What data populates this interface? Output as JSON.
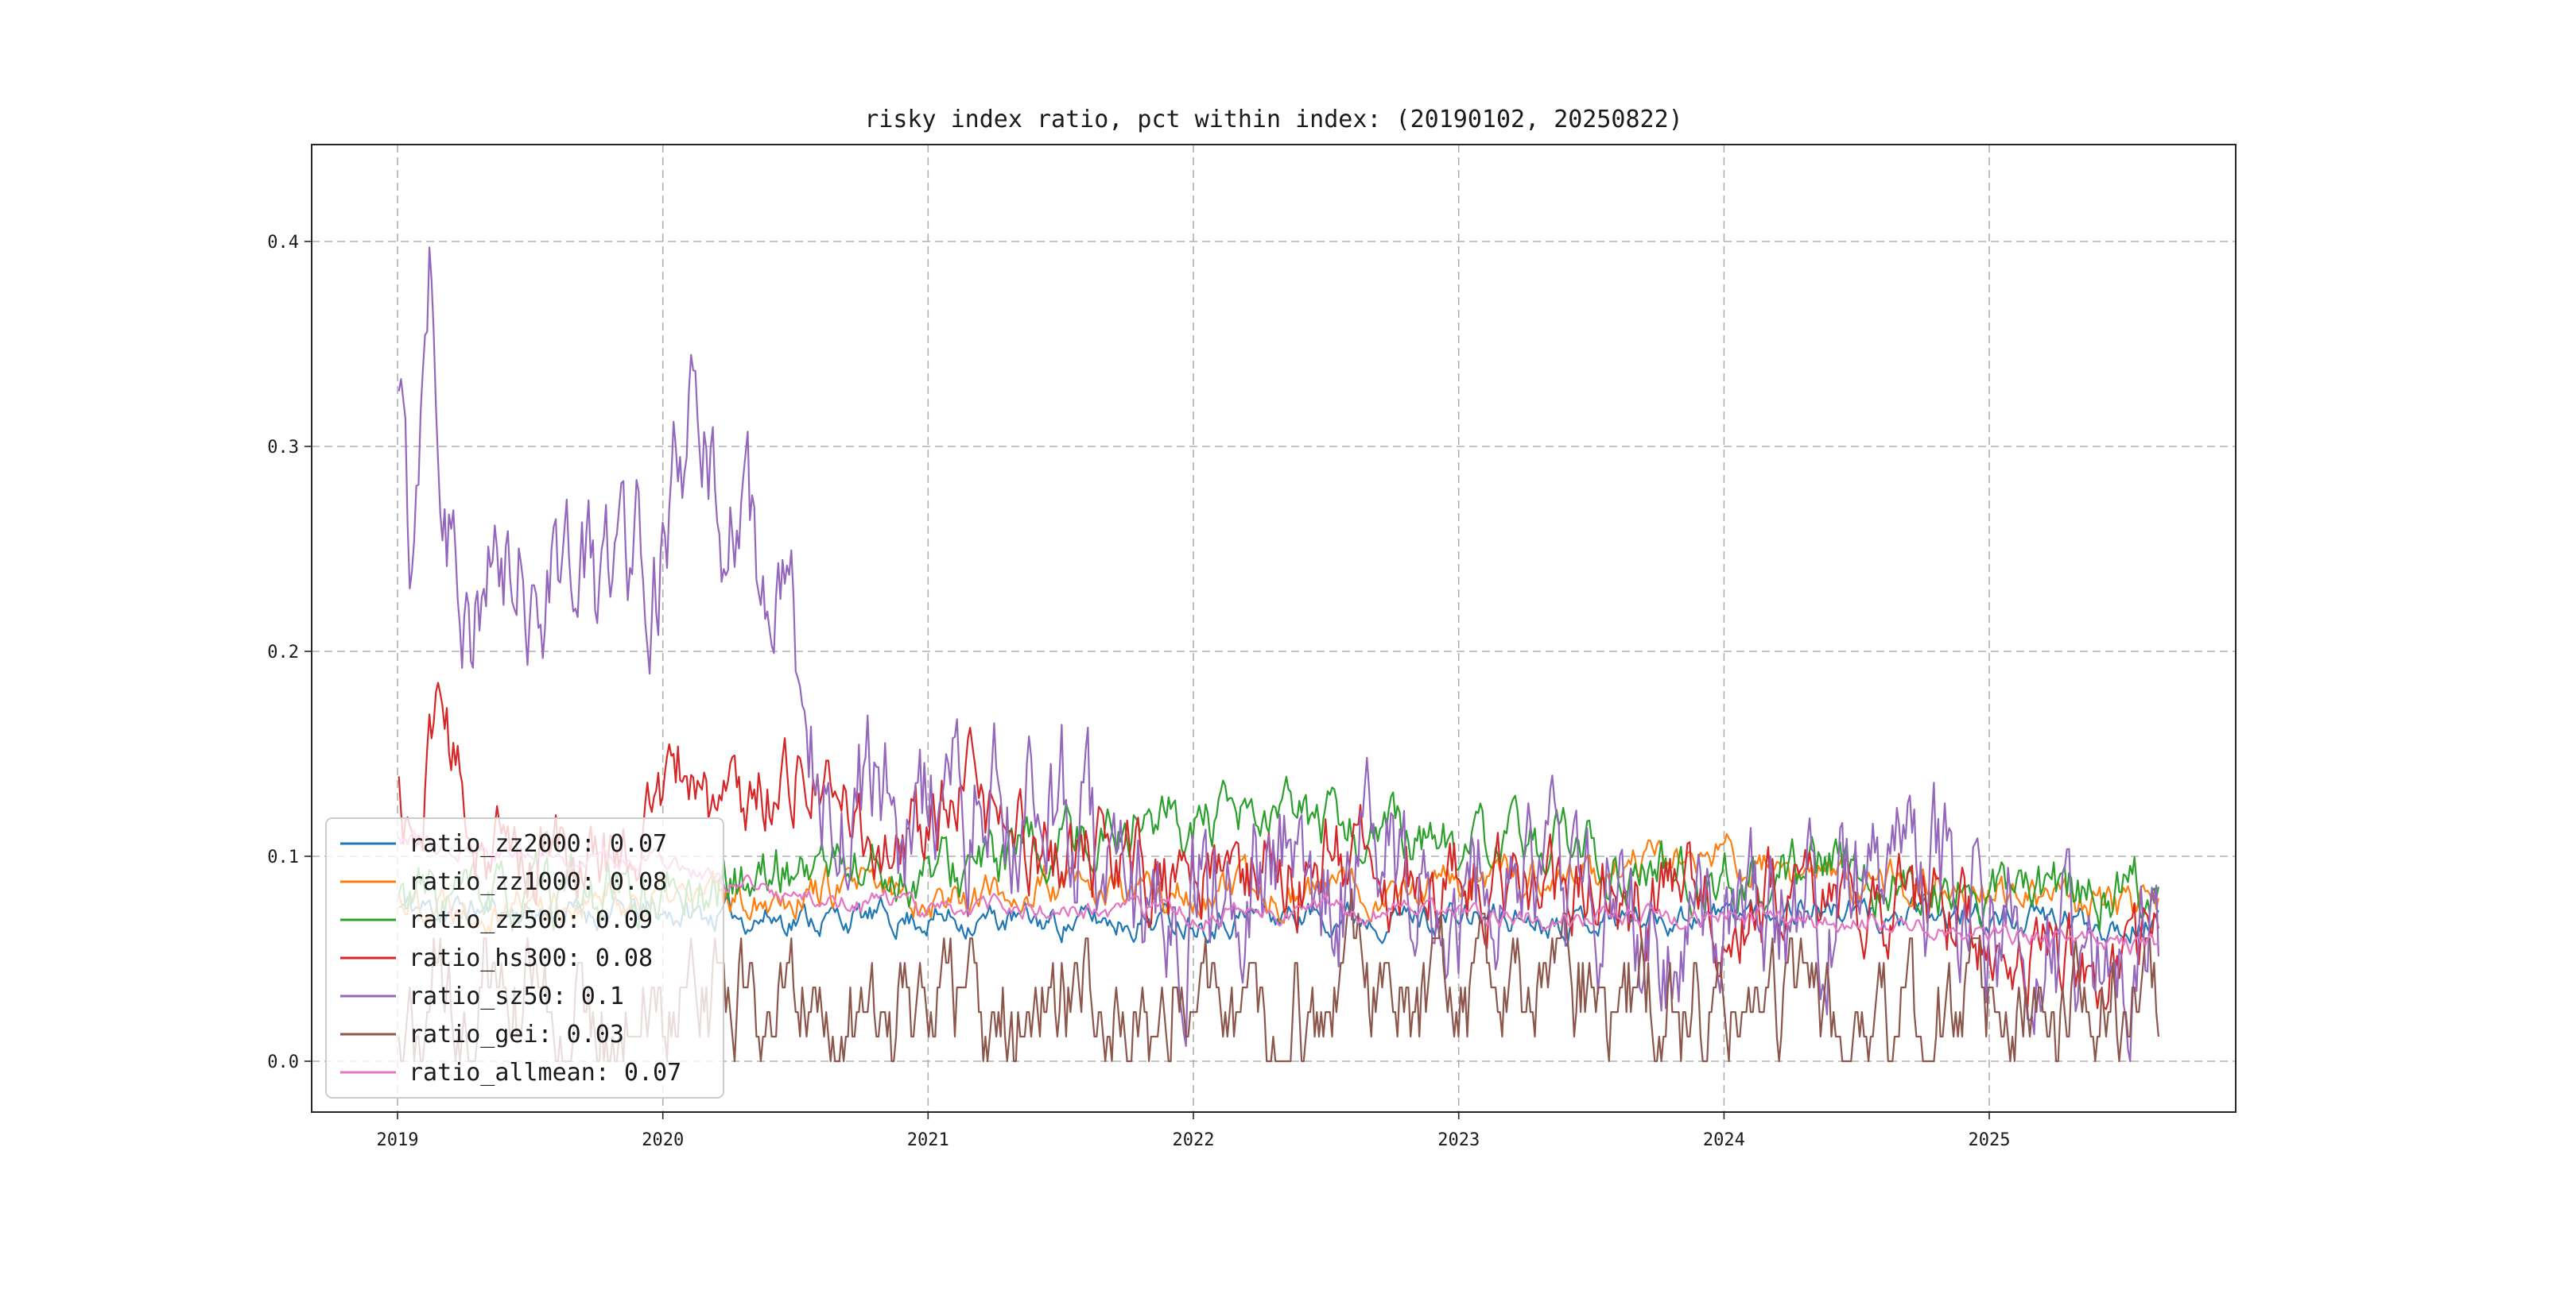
{
  "figure": {
    "background": "#ffffff"
  },
  "chart_data": {
    "type": "line",
    "title": "risky index ratio, pct within index: (20190102, 20250822)",
    "date_range": [
      "20190102",
      "20250822"
    ],
    "grid": true,
    "grid_style": "dashed",
    "grid_color": "#b0b0b0",
    "legend_position": "lower-left",
    "x_axis": {
      "ticks": [
        2019,
        2020,
        2021,
        2022,
        2023,
        2024,
        2025
      ],
      "range_decimal_years": [
        2018.68,
        2025.93
      ]
    },
    "y_axis": {
      "tick_labels": [
        "0.0",
        "0.1",
        "0.2",
        "0.3",
        "0.4"
      ],
      "tick_values": [
        0.0,
        0.1,
        0.2,
        0.3,
        0.4
      ],
      "range": [
        -0.025,
        0.447
      ]
    },
    "series": [
      {
        "name": "ratio_zz2000",
        "legend_label": "ratio_zz2000: 0.07",
        "mean": 0.07,
        "color": "#1f77b4",
        "noise_amp": 0.006,
        "seed": 11,
        "anchors": [
          [
            2019.0,
            0.075
          ],
          [
            2019.5,
            0.073
          ],
          [
            2020.0,
            0.072
          ],
          [
            2020.5,
            0.07
          ],
          [
            2021.0,
            0.07
          ],
          [
            2021.5,
            0.068
          ],
          [
            2022.0,
            0.07
          ],
          [
            2022.5,
            0.072
          ],
          [
            2023.0,
            0.07
          ],
          [
            2023.5,
            0.07
          ],
          [
            2024.0,
            0.072
          ],
          [
            2024.3,
            0.076
          ],
          [
            2024.6,
            0.07
          ],
          [
            2025.0,
            0.07
          ],
          [
            2025.3,
            0.068
          ],
          [
            2025.64,
            0.068
          ]
        ]
      },
      {
        "name": "ratio_zz1000",
        "legend_label": "ratio_zz1000: 0.08",
        "mean": 0.08,
        "color": "#ff7f0e",
        "noise_amp": 0.008,
        "seed": 22,
        "anchors": [
          [
            2019.0,
            0.08
          ],
          [
            2019.6,
            0.078
          ],
          [
            2020.2,
            0.08
          ],
          [
            2020.6,
            0.085
          ],
          [
            2021.0,
            0.08
          ],
          [
            2021.5,
            0.084
          ],
          [
            2022.0,
            0.08
          ],
          [
            2022.5,
            0.084
          ],
          [
            2023.0,
            0.086
          ],
          [
            2023.5,
            0.09
          ],
          [
            2023.8,
            0.1
          ],
          [
            2024.05,
            0.098
          ],
          [
            2024.3,
            0.088
          ],
          [
            2024.6,
            0.086
          ],
          [
            2024.9,
            0.09
          ],
          [
            2025.1,
            0.08
          ],
          [
            2025.35,
            0.074
          ],
          [
            2025.64,
            0.075
          ]
        ]
      },
      {
        "name": "ratio_zz500",
        "legend_label": "ratio_zz500: 0.09",
        "mean": 0.09,
        "color": "#2ca02c",
        "noise_amp": 0.012,
        "seed": 33,
        "anchors": [
          [
            2019.0,
            0.08
          ],
          [
            2019.5,
            0.078
          ],
          [
            2020.0,
            0.08
          ],
          [
            2020.3,
            0.088
          ],
          [
            2020.6,
            0.098
          ],
          [
            2020.9,
            0.09
          ],
          [
            2021.1,
            0.092
          ],
          [
            2021.4,
            0.1
          ],
          [
            2021.6,
            0.11
          ],
          [
            2021.85,
            0.12
          ],
          [
            2022.1,
            0.112
          ],
          [
            2022.35,
            0.118
          ],
          [
            2022.6,
            0.112
          ],
          [
            2022.9,
            0.108
          ],
          [
            2023.1,
            0.102
          ],
          [
            2023.35,
            0.108
          ],
          [
            2023.6,
            0.095
          ],
          [
            2023.9,
            0.09
          ],
          [
            2024.2,
            0.09
          ],
          [
            2024.5,
            0.092
          ],
          [
            2024.8,
            0.082
          ],
          [
            2025.1,
            0.08
          ],
          [
            2025.4,
            0.082
          ],
          [
            2025.64,
            0.086
          ]
        ]
      },
      {
        "name": "ratio_hs300",
        "legend_label": "ratio_hs300: 0.08",
        "mean": 0.08,
        "color": "#d62728",
        "noise_amp": 0.018,
        "seed": 44,
        "anchors": [
          [
            2019.0,
            0.13
          ],
          [
            2019.08,
            0.1
          ],
          [
            2019.15,
            0.185
          ],
          [
            2019.25,
            0.12
          ],
          [
            2019.4,
            0.1
          ],
          [
            2019.6,
            0.1
          ],
          [
            2019.8,
            0.1
          ],
          [
            2019.95,
            0.12
          ],
          [
            2020.1,
            0.145
          ],
          [
            2020.2,
            0.12
          ],
          [
            2020.35,
            0.13
          ],
          [
            2020.5,
            0.145
          ],
          [
            2020.65,
            0.12
          ],
          [
            2020.8,
            0.11
          ],
          [
            2021.0,
            0.11
          ],
          [
            2021.15,
            0.13
          ],
          [
            2021.3,
            0.11
          ],
          [
            2021.5,
            0.1
          ],
          [
            2021.7,
            0.095
          ],
          [
            2021.9,
            0.09
          ],
          [
            2022.2,
            0.09
          ],
          [
            2022.5,
            0.1
          ],
          [
            2022.8,
            0.09
          ],
          [
            2023.1,
            0.09
          ],
          [
            2023.4,
            0.085
          ],
          [
            2023.7,
            0.08
          ],
          [
            2024.0,
            0.08
          ],
          [
            2024.3,
            0.08
          ],
          [
            2024.6,
            0.078
          ],
          [
            2024.9,
            0.07
          ],
          [
            2025.1,
            0.06
          ],
          [
            2025.35,
            0.05
          ],
          [
            2025.64,
            0.052
          ]
        ]
      },
      {
        "name": "ratio_sz50",
        "legend_label": "ratio_sz50: 0.1",
        "mean": 0.1,
        "color": "#9467bd",
        "noise_amp": 0.032,
        "seed": 55,
        "anchors": [
          [
            2019.0,
            0.34
          ],
          [
            2019.05,
            0.24
          ],
          [
            2019.12,
            0.42
          ],
          [
            2019.18,
            0.28
          ],
          [
            2019.3,
            0.22
          ],
          [
            2019.45,
            0.23
          ],
          [
            2019.6,
            0.25
          ],
          [
            2019.75,
            0.23
          ],
          [
            2019.9,
            0.26
          ],
          [
            2020.0,
            0.25
          ],
          [
            2020.1,
            0.3
          ],
          [
            2020.25,
            0.27
          ],
          [
            2020.35,
            0.24
          ],
          [
            2020.5,
            0.19
          ],
          [
            2020.6,
            0.15
          ],
          [
            2020.75,
            0.13
          ],
          [
            2020.9,
            0.12
          ],
          [
            2021.1,
            0.12
          ],
          [
            2021.3,
            0.12
          ],
          [
            2021.5,
            0.13
          ],
          [
            2021.65,
            0.1
          ],
          [
            2021.8,
            0.08
          ],
          [
            2022.0,
            0.08
          ],
          [
            2022.3,
            0.085
          ],
          [
            2022.6,
            0.095
          ],
          [
            2022.9,
            0.085
          ],
          [
            2023.1,
            0.09
          ],
          [
            2023.4,
            0.08
          ],
          [
            2023.7,
            0.07
          ],
          [
            2023.95,
            0.065
          ],
          [
            2024.15,
            0.07
          ],
          [
            2024.4,
            0.085
          ],
          [
            2024.6,
            0.1
          ],
          [
            2024.8,
            0.09
          ],
          [
            2025.0,
            0.07
          ],
          [
            2025.25,
            0.06
          ],
          [
            2025.64,
            0.05
          ]
        ]
      },
      {
        "name": "ratio_gei",
        "legend_label": "ratio_gei: 0.03",
        "mean": 0.03,
        "color": "#8c564b",
        "noise_amp": 0.022,
        "quantize": 0.012,
        "seed": 66,
        "anchors": [
          [
            2019.0,
            0.03
          ],
          [
            2020.5,
            0.032
          ],
          [
            2021.5,
            0.028
          ],
          [
            2022.5,
            0.032
          ],
          [
            2023.5,
            0.03
          ],
          [
            2024.5,
            0.028
          ],
          [
            2025.64,
            0.028
          ]
        ]
      },
      {
        "name": "ratio_allmean",
        "legend_label": "ratio_allmean: 0.07",
        "mean": 0.07,
        "color": "#e377c2",
        "noise_amp": 0.004,
        "seed": 77,
        "anchors": [
          [
            2019.0,
            0.11
          ],
          [
            2019.5,
            0.1
          ],
          [
            2020.0,
            0.1
          ],
          [
            2020.25,
            0.085
          ],
          [
            2020.5,
            0.08
          ],
          [
            2020.8,
            0.078
          ],
          [
            2021.0,
            0.076
          ],
          [
            2021.5,
            0.073
          ],
          [
            2022.0,
            0.072
          ],
          [
            2022.5,
            0.074
          ],
          [
            2023.0,
            0.072
          ],
          [
            2023.5,
            0.07
          ],
          [
            2024.0,
            0.07
          ],
          [
            2024.5,
            0.068
          ],
          [
            2025.0,
            0.063
          ],
          [
            2025.3,
            0.058
          ],
          [
            2025.64,
            0.055
          ]
        ]
      }
    ]
  }
}
